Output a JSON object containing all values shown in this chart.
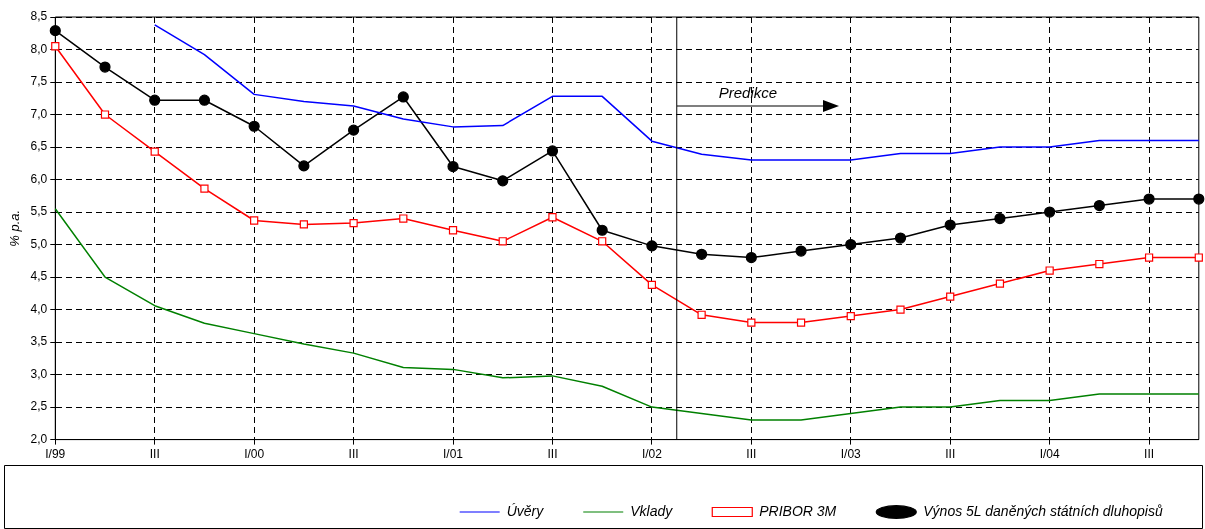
{
  "chart_data": {
    "type": "line",
    "ylabel": "% p.a.",
    "categories": [
      "I/99",
      null,
      "III",
      null,
      "I/00",
      null,
      "III",
      null,
      "I/01",
      null,
      "III",
      null,
      "I/02",
      null,
      "III",
      null,
      "I/03",
      null,
      "III",
      null,
      "I/04",
      null,
      "III",
      null
    ],
    "series": [
      {
        "name": "Úvěry",
        "color": "#0000ff",
        "marker": "none",
        "values": [
          null,
          null,
          8.38,
          7.92,
          7.31,
          7.2,
          7.13,
          6.93,
          6.81,
          6.83,
          7.28,
          7.28,
          6.59,
          6.39,
          6.3,
          6.3,
          6.3,
          6.4,
          6.4,
          6.5,
          6.5,
          6.6,
          6.6,
          6.6
        ]
      },
      {
        "name": "Vklady",
        "color": "#008000",
        "marker": "none",
        "values": [
          5.55,
          4.5,
          4.06,
          3.79,
          3.63,
          3.47,
          3.33,
          3.11,
          3.08,
          2.95,
          2.98,
          2.82,
          2.5,
          2.4,
          2.3,
          2.3,
          2.4,
          2.5,
          2.5,
          2.6,
          2.6,
          2.7,
          2.7,
          2.7
        ]
      },
      {
        "name": "PRIBOR 3M",
        "color": "#ff0000",
        "marker": "square",
        "values": [
          8.05,
          7.0,
          6.43,
          5.86,
          5.37,
          5.31,
          5.33,
          5.4,
          5.22,
          5.05,
          5.42,
          5.05,
          4.38,
          3.92,
          3.8,
          3.8,
          3.9,
          4.0,
          4.2,
          4.4,
          4.6,
          4.7,
          4.8,
          4.8
        ]
      },
      {
        "name": "Výnos 5L daněných státních dluhopisů",
        "color": "#000000",
        "marker": "circle",
        "values": [
          8.29,
          7.73,
          7.22,
          7.22,
          6.82,
          6.21,
          6.76,
          7.27,
          6.2,
          5.98,
          6.44,
          5.22,
          4.98,
          4.85,
          4.8,
          4.9,
          5.0,
          5.1,
          5.3,
          5.4,
          5.5,
          5.6,
          5.7,
          5.7
        ]
      }
    ],
    "ylim": [
      2.0,
      8.5
    ],
    "yticks": [
      {
        "value": 2.0,
        "label": "2,0"
      },
      {
        "value": 2.5,
        "label": "2,5"
      },
      {
        "value": 3.0,
        "label": "3,0"
      },
      {
        "value": 3.5,
        "label": "3,5"
      },
      {
        "value": 4.0,
        "label": "4,0"
      },
      {
        "value": 4.5,
        "label": "4,5"
      },
      {
        "value": 5.0,
        "label": "5,0"
      },
      {
        "value": 5.5,
        "label": "5,5"
      },
      {
        "value": 6.0,
        "label": "6,0"
      },
      {
        "value": 6.5,
        "label": "6,5"
      },
      {
        "value": 7.0,
        "label": "7,0"
      },
      {
        "value": 7.5,
        "label": "7,5"
      },
      {
        "value": 8.0,
        "label": "8,0"
      },
      {
        "value": 8.5,
        "label": "8,5"
      }
    ],
    "annotations": [
      "Predikce"
    ],
    "grid": true,
    "legend": "bottom",
    "line_style": "solid"
  }
}
